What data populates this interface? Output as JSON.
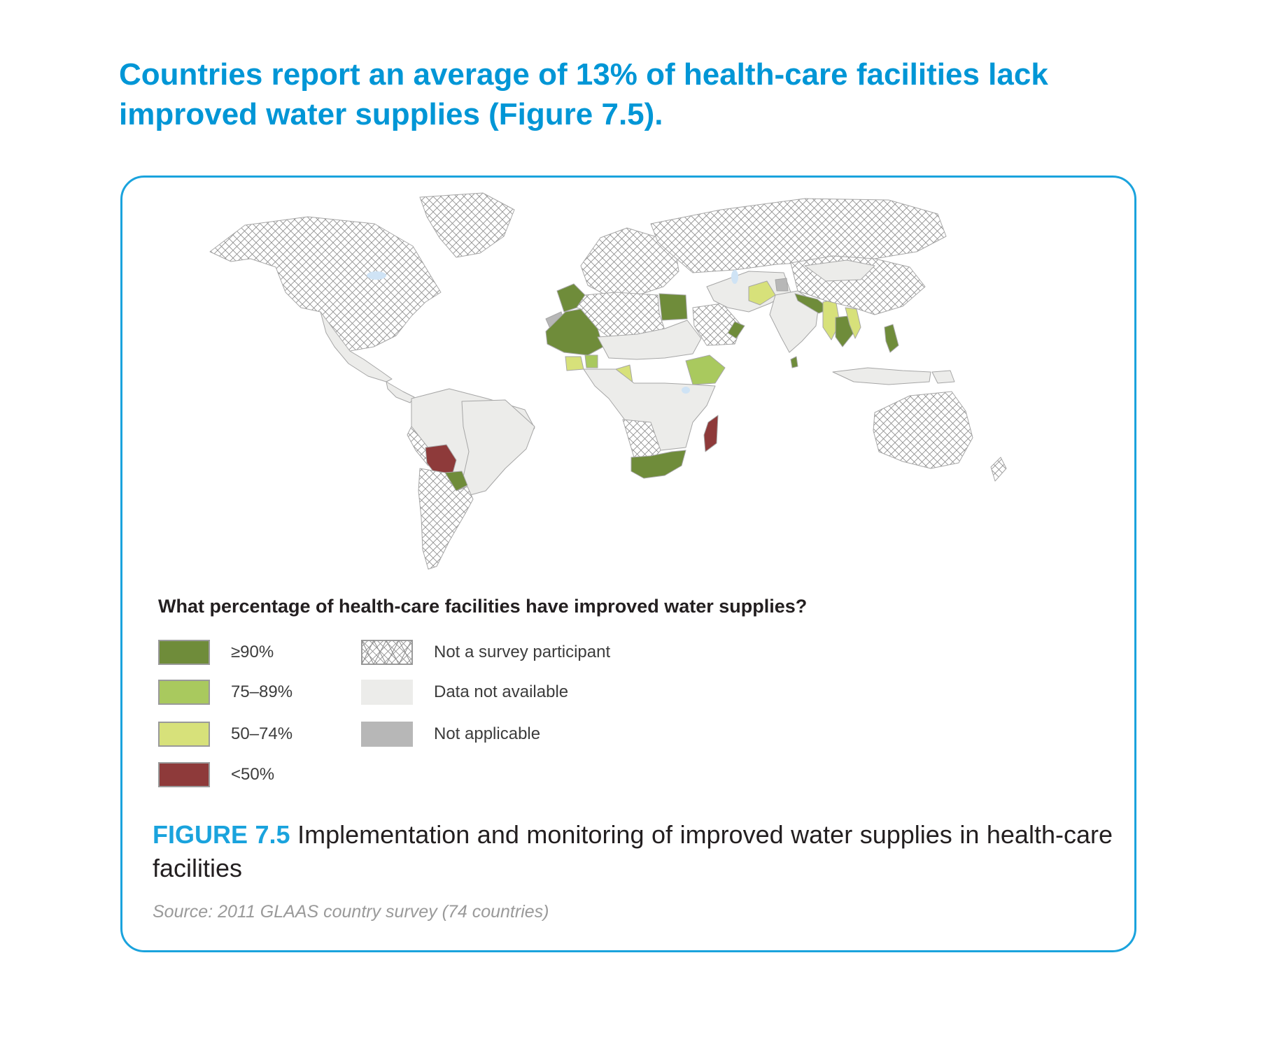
{
  "headline": "Countries report an average of 13% of health-care facilities lack improved water supplies (Figure 7.5).",
  "legend": {
    "title": "What percentage of health-care facilities have improved water supplies?",
    "items": [
      {
        "label": "≥90%",
        "color": "#6f8c3a",
        "pattern": "solid"
      },
      {
        "label": "75–89%",
        "color": "#a9c95e",
        "pattern": "solid"
      },
      {
        "label": "50–74%",
        "color": "#d7e17a",
        "pattern": "solid"
      },
      {
        "label": "<50%",
        "color": "#8e3a3a",
        "pattern": "solid"
      },
      {
        "label": "Not a survey participant",
        "color": "#ffffff",
        "pattern": "crosshatch"
      },
      {
        "label": "Data not available",
        "color": "#ececea",
        "pattern": "solid"
      },
      {
        "label": "Not applicable",
        "color": "#b7b7b7",
        "pattern": "solid"
      }
    ]
  },
  "caption": {
    "figure_label": "FIGURE 7.5",
    "text": "Implementation and monitoring of improved water supplies in health-care facilities"
  },
  "source": "Source: 2011 GLAAS country survey (74 countries)",
  "map": {
    "type": "world choropleth",
    "lake_color": "#cfe3f5",
    "regions": [
      {
        "name": "North America",
        "category": "Not a survey participant"
      },
      {
        "name": "Greenland",
        "category": "Not a survey participant"
      },
      {
        "name": "Mexico",
        "category": "Data not available"
      },
      {
        "name": "Central America",
        "category": "Data not available"
      },
      {
        "name": "Northern South America",
        "category": "Data not available"
      },
      {
        "name": "Brazil",
        "category": "Data not available"
      },
      {
        "name": "Peru and western South America",
        "category": "Not a survey participant"
      },
      {
        "name": "Bolivia",
        "category": "<50%"
      },
      {
        "name": "Paraguay",
        "category": "≥90%"
      },
      {
        "name": "Southern Cone",
        "category": "Not a survey participant"
      },
      {
        "name": "Europe",
        "category": "Not a survey participant"
      },
      {
        "name": "Russia",
        "category": "Not a survey participant"
      },
      {
        "name": "Morocco",
        "category": "≥90%"
      },
      {
        "name": "Western Sahara",
        "category": "Not applicable"
      },
      {
        "name": "West Africa (Mauritania, Mali)",
        "category": "≥90%"
      },
      {
        "name": "Algeria and Libya",
        "category": "Not a survey participant"
      },
      {
        "name": "Egypt",
        "category": "≥90%"
      },
      {
        "name": "Sudan and Sahel",
        "category": "Data not available"
      },
      {
        "name": "Ethiopia",
        "category": "75–89%"
      },
      {
        "name": "Cote d'Ivoire area",
        "category": "50–74%"
      },
      {
        "name": "Ghana area",
        "category": "75–89%"
      },
      {
        "name": "Cameroon",
        "category": "50–74%"
      },
      {
        "name": "Central and East Africa",
        "category": "Data not available"
      },
      {
        "name": "Angola and Namibia",
        "category": "Not a survey participant"
      },
      {
        "name": "South Africa",
        "category": "≥90%"
      },
      {
        "name": "Madagascar",
        "category": "<50%"
      },
      {
        "name": "Arabian Peninsula",
        "category": "Not a survey participant"
      },
      {
        "name": "Oman",
        "category": "≥90%"
      },
      {
        "name": "Iran and Central Asia",
        "category": "Data not available"
      },
      {
        "name": "Afghanistan",
        "category": "50–74%"
      },
      {
        "name": "Kashmir",
        "category": "Not applicable"
      },
      {
        "name": "India",
        "category": "Data not available"
      },
      {
        "name": "Nepal and Bangladesh",
        "category": "≥90%"
      },
      {
        "name": "Sri Lanka",
        "category": "≥90%"
      },
      {
        "name": "Myanmar",
        "category": "50–74%"
      },
      {
        "name": "Thailand and Cambodia",
        "category": "≥90%"
      },
      {
        "name": "Laos and Vietnam",
        "category": "50–74%"
      },
      {
        "name": "China",
        "category": "Not a survey participant"
      },
      {
        "name": "Mongolia",
        "category": "Data not available"
      },
      {
        "name": "Philippines",
        "category": "≥90%"
      },
      {
        "name": "Indonesia",
        "category": "Data not available"
      },
      {
        "name": "Papua New Guinea",
        "category": "Data not available"
      },
      {
        "name": "Australia",
        "category": "Not a survey participant"
      },
      {
        "name": "New Zealand",
        "category": "Not a survey participant"
      }
    ]
  }
}
